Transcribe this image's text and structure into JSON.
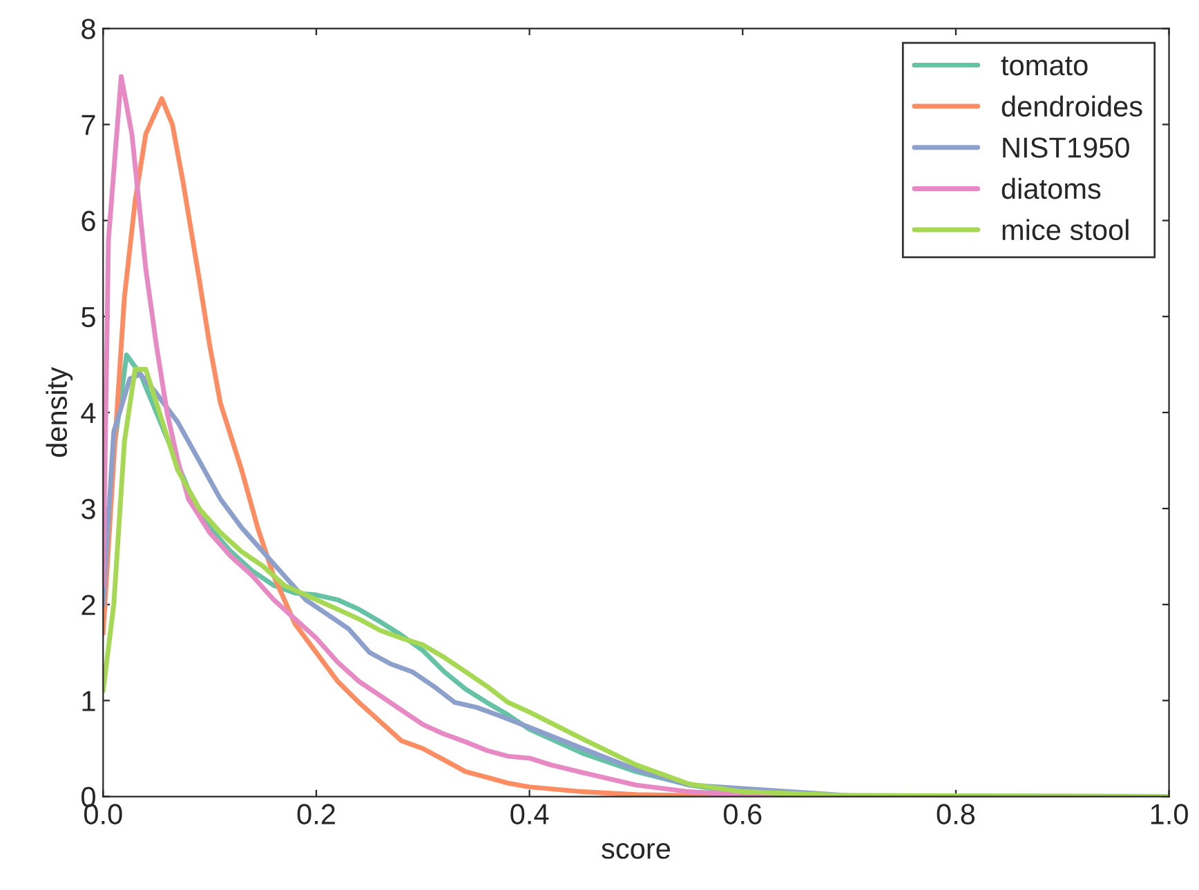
{
  "chart_data": {
    "type": "line",
    "xlabel": "score",
    "ylabel": "density",
    "xlim": [
      0,
      1.0
    ],
    "ylim": [
      0,
      8
    ],
    "xticks": [
      {
        "value": 0,
        "label": "0.0"
      },
      {
        "value": 0.2,
        "label": "0.2"
      },
      {
        "value": 0.4,
        "label": "0.4"
      },
      {
        "value": 0.6,
        "label": "0.6"
      },
      {
        "value": 0.8,
        "label": "0.8"
      },
      {
        "value": 1.0,
        "label": "1.0"
      }
    ],
    "yticks": [
      0,
      1,
      2,
      3,
      4,
      5,
      6,
      7,
      8
    ],
    "grid": false,
    "legend": "top right",
    "line_style": "solid",
    "marker": "none",
    "series": [
      {
        "name": "tomato",
        "color": "#66c2a5",
        "x": [
          0,
          0.01,
          0.022,
          0.035,
          0.05,
          0.065,
          0.08,
          0.1,
          0.12,
          0.14,
          0.16,
          0.18,
          0.2,
          0.22,
          0.24,
          0.26,
          0.28,
          0.3,
          0.32,
          0.34,
          0.36,
          0.38,
          0.4,
          0.45,
          0.5,
          0.55,
          0.6,
          0.7,
          0.8,
          1.0
        ],
        "values": [
          1.8,
          3.6,
          4.6,
          4.4,
          4.0,
          3.6,
          3.2,
          2.8,
          2.55,
          2.35,
          2.2,
          2.12,
          2.1,
          2.05,
          1.95,
          1.82,
          1.68,
          1.52,
          1.3,
          1.12,
          0.98,
          0.85,
          0.7,
          0.45,
          0.26,
          0.12,
          0.04,
          0.01,
          0,
          0
        ]
      },
      {
        "name": "dendroides",
        "color": "#fc8d62",
        "x": [
          0,
          0.01,
          0.02,
          0.03,
          0.04,
          0.055,
          0.065,
          0.075,
          0.09,
          0.1,
          0.11,
          0.13,
          0.145,
          0.16,
          0.18,
          0.2,
          0.22,
          0.24,
          0.26,
          0.28,
          0.3,
          0.32,
          0.34,
          0.36,
          0.38,
          0.4,
          0.45,
          0.5,
          0.6,
          0.7,
          1.0
        ],
        "values": [
          1.7,
          3.5,
          5.2,
          6.2,
          6.9,
          7.27,
          7.0,
          6.4,
          5.4,
          4.7,
          4.1,
          3.4,
          2.8,
          2.3,
          1.8,
          1.5,
          1.2,
          0.98,
          0.78,
          0.58,
          0.5,
          0.38,
          0.26,
          0.2,
          0.14,
          0.1,
          0.05,
          0.02,
          0,
          0,
          0
        ]
      },
      {
        "name": "NIST1950",
        "color": "#8da0cb",
        "x": [
          0,
          0.01,
          0.025,
          0.035,
          0.05,
          0.07,
          0.09,
          0.11,
          0.13,
          0.15,
          0.17,
          0.19,
          0.21,
          0.23,
          0.25,
          0.27,
          0.29,
          0.31,
          0.33,
          0.35,
          0.37,
          0.4,
          0.45,
          0.5,
          0.55,
          0.7,
          1.0
        ],
        "values": [
          2.0,
          3.8,
          4.35,
          4.4,
          4.2,
          3.9,
          3.5,
          3.1,
          2.8,
          2.55,
          2.3,
          2.05,
          1.9,
          1.75,
          1.5,
          1.38,
          1.3,
          1.15,
          0.98,
          0.93,
          0.85,
          0.72,
          0.5,
          0.28,
          0.12,
          0.01,
          0
        ]
      },
      {
        "name": "diatoms",
        "color": "#e78ac3",
        "x": [
          0,
          0.005,
          0.017,
          0.027,
          0.04,
          0.05,
          0.06,
          0.07,
          0.08,
          0.1,
          0.12,
          0.14,
          0.16,
          0.18,
          0.2,
          0.22,
          0.24,
          0.26,
          0.28,
          0.3,
          0.32,
          0.34,
          0.36,
          0.38,
          0.4,
          0.42,
          0.45,
          0.5,
          0.55,
          0.6,
          0.7,
          1.0
        ],
        "values": [
          2.2,
          5.8,
          7.5,
          6.9,
          5.5,
          4.7,
          4.0,
          3.5,
          3.1,
          2.75,
          2.5,
          2.3,
          2.05,
          1.85,
          1.65,
          1.4,
          1.2,
          1.05,
          0.9,
          0.75,
          0.65,
          0.57,
          0.48,
          0.42,
          0.4,
          0.33,
          0.25,
          0.12,
          0.05,
          0.02,
          0,
          0
        ]
      },
      {
        "name": "mice stool",
        "color": "#a6d854",
        "x": [
          0,
          0.01,
          0.02,
          0.03,
          0.04,
          0.05,
          0.07,
          0.09,
          0.11,
          0.13,
          0.15,
          0.17,
          0.2,
          0.22,
          0.24,
          0.26,
          0.28,
          0.3,
          0.32,
          0.34,
          0.36,
          0.38,
          0.4,
          0.45,
          0.5,
          0.55,
          0.6,
          0.7,
          1.0
        ],
        "values": [
          1.1,
          2.0,
          3.7,
          4.45,
          4.45,
          4.1,
          3.4,
          3.0,
          2.75,
          2.55,
          2.4,
          2.2,
          2.05,
          1.95,
          1.85,
          1.73,
          1.65,
          1.58,
          1.45,
          1.3,
          1.15,
          0.98,
          0.88,
          0.6,
          0.33,
          0.13,
          0.05,
          0.01,
          0
        ]
      }
    ]
  }
}
